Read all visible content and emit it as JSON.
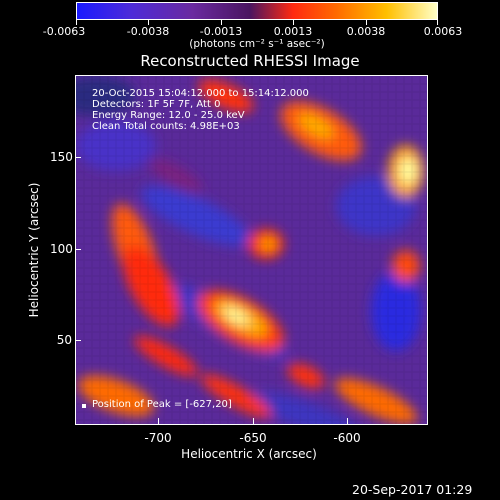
{
  "colorbar": {
    "ticks": [
      "-0.0063",
      "-0.0038",
      "-0.0013",
      "0.0013",
      "0.0038",
      "0.0063"
    ],
    "units": "(photons cm⁻² s⁻¹ asec⁻²)"
  },
  "title": "Reconstructed RHESSI Image",
  "info": {
    "line1": "20-Oct-2015 15:04:12.000 to 15:14:12.000",
    "line2": "Detectors: 1F 5F 7F, Att 0",
    "line3": "Energy Range: 12.0 - 25.0 keV",
    "line4": "Clean     Total counts: 4.98E+03",
    "peak": "Position of Peak = [-627,20]"
  },
  "axes": {
    "xlabel": "Heliocentric X (arcsec)",
    "ylabel": "Heliocentric Y (arcsec)",
    "xticks": [
      "-700",
      "-650",
      "-600"
    ],
    "yticks": [
      "150",
      "100",
      "50"
    ]
  },
  "timestamp": "20-Sep-2017 01:29"
}
